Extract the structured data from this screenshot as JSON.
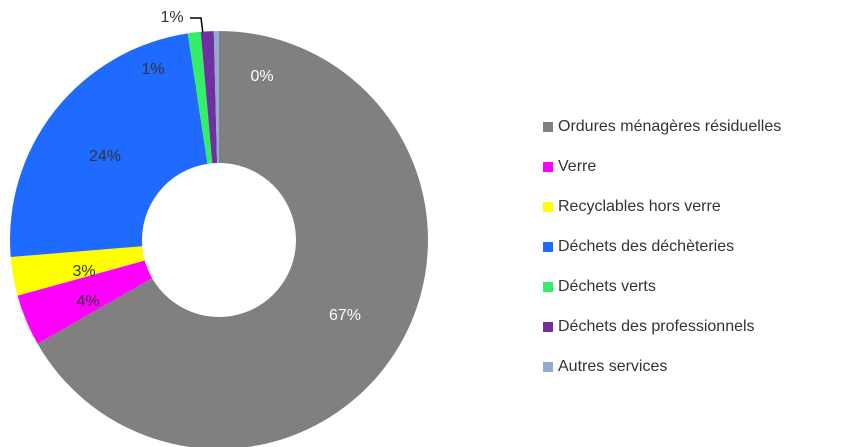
{
  "chart_data": {
    "type": "pie",
    "donut": true,
    "categories": [
      "Ordures ménagères résiduelles",
      "Verre",
      "Recyclables hors verre",
      "Déchets des déchèteries",
      "Déchets verts",
      "Déchets des professionnels",
      "Autres services"
    ],
    "values": [
      67,
      4,
      3,
      24,
      1,
      1,
      0.4
    ],
    "value_labels": [
      "67%",
      "4%",
      "3%",
      "24%",
      "1%",
      "1%",
      "0%"
    ],
    "colors": [
      "#808080",
      "#ff00ff",
      "#ffff00",
      "#1f6bff",
      "#33ee66",
      "#7030a0",
      "#92a9d0"
    ],
    "legend": "right"
  }
}
